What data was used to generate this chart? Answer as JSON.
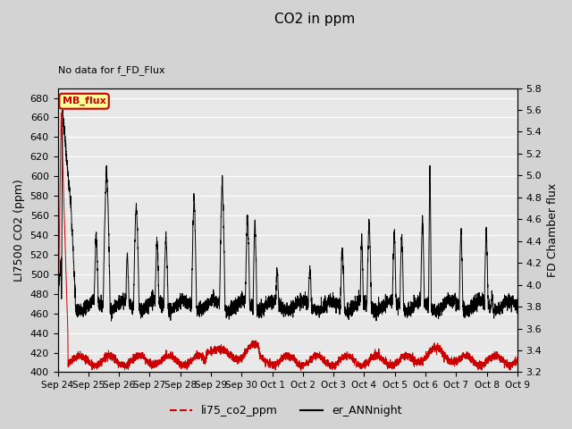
{
  "title": "CO2 in ppm",
  "top_left_text": "No data for f_FD_Flux",
  "ylabel_left": "LI7500 CO2 (ppm)",
  "ylabel_right": "FD Chamber flux",
  "ylim_left": [
    400,
    690
  ],
  "ylim_right": [
    3.2,
    5.8
  ],
  "yticks_left": [
    400,
    420,
    440,
    460,
    480,
    500,
    520,
    540,
    560,
    580,
    600,
    620,
    640,
    660,
    680
  ],
  "yticks_right": [
    3.2,
    3.4,
    3.6,
    3.8,
    4.0,
    4.2,
    4.4,
    4.6,
    4.8,
    5.0,
    5.2,
    5.4,
    5.6,
    5.8
  ],
  "xtick_labels": [
    "Sep 24",
    "Sep 25",
    "Sep 26",
    "Sep 27",
    "Sep 28",
    "Sep 29",
    "Sep 30",
    "Oct 1",
    "Oct 2",
    "Oct 3",
    "Oct 4",
    "Oct 5",
    "Oct 6",
    "Oct 7",
    "Oct 8",
    "Oct 9"
  ],
  "legend_labels": [
    "li75_co2_ppm",
    "er_ANNnight"
  ],
  "legend_colors": [
    "#cc0000",
    "#000000"
  ],
  "line1_color": "#cc0000",
  "line2_color": "#000000",
  "fig_bg_color": "#d3d3d3",
  "plot_bg_color": "#e8e8e8",
  "grid_color": "#ffffff",
  "mb_flux_label": "MB_flux",
  "mb_flux_box_color": "#ffff99",
  "mb_flux_border_color": "#cc0000",
  "n_days": 15.5
}
